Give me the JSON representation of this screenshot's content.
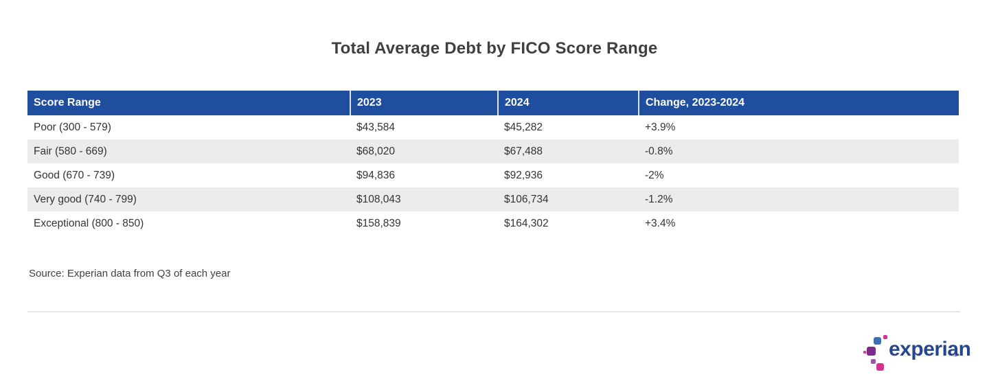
{
  "title": "Total Average Debt by FICO Score Range",
  "table": {
    "headers": [
      "Score Range",
      "2023",
      "2024",
      "Change, 2023-2024"
    ],
    "rows": [
      [
        "Poor (300 - 579)",
        "$43,584",
        "$45,282",
        "+3.9%"
      ],
      [
        "Fair (580 - 669)",
        "$68,020",
        "$67,488",
        "-0.8%"
      ],
      [
        "Good (670 - 739)",
        "$94,836",
        "$92,936",
        "-2%"
      ],
      [
        "Very good (740 - 799)",
        "$108,043",
        "$106,734",
        "-1.2%"
      ],
      [
        "Exceptional (800 - 850)",
        "$158,839",
        "$164,302",
        "+3.4%"
      ]
    ]
  },
  "source": "Source: Experian data from Q3 of each year",
  "logo": {
    "wordmark": "experian",
    "trademark": "™"
  },
  "colors": {
    "header_bg": "#1F4E9E",
    "row_stripe": "#ECECEC",
    "title_text": "#404040",
    "body_text": "#333333",
    "experian_blue": "#26478D",
    "square_blue": "#406EB3",
    "square_magenta": "#D5328F",
    "square_purple": "#7D2A8B",
    "square_pink": "#E63888"
  },
  "chart_data": {
    "type": "table",
    "title": "Total Average Debt by FICO Score Range",
    "columns": [
      "Score Range",
      "2023",
      "2024",
      "Change, 2023-2024"
    ],
    "categories": [
      "Poor (300 - 579)",
      "Fair (580 - 669)",
      "Good (670 - 739)",
      "Very good (740 - 799)",
      "Exceptional (800 - 850)"
    ],
    "series": [
      {
        "name": "2023",
        "values": [
          43584,
          68020,
          94836,
          108043,
          158839
        ]
      },
      {
        "name": "2024",
        "values": [
          45282,
          67488,
          92936,
          106734,
          164302
        ]
      },
      {
        "name": "Change, 2023-2024",
        "values": [
          "+3.9%",
          "-0.8%",
          "-2%",
          "-1.2%",
          "+3.4%"
        ]
      }
    ],
    "source": "Source: Experian data from Q3 of each year"
  }
}
